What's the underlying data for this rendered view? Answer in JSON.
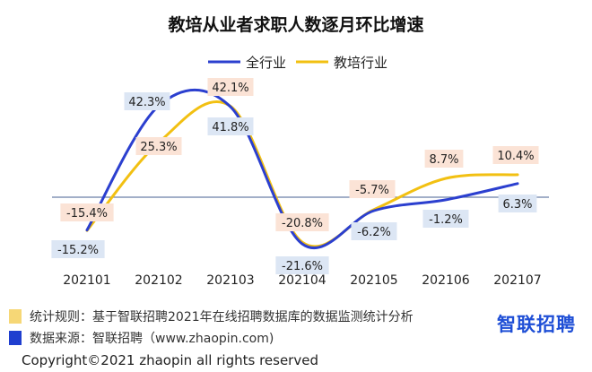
{
  "chart_data": {
    "type": "line",
    "title": "教培从业者求职人数逐月环比增速",
    "categories": [
      "202101",
      "202102",
      "202103",
      "202104",
      "202105",
      "202106",
      "202107"
    ],
    "series": [
      {
        "name": "全行业",
        "color": "#2b3fcf",
        "values": [
          -15.2,
          42.3,
          41.8,
          -21.6,
          -6.2,
          -1.2,
          6.3
        ],
        "labels": [
          "-15.2%",
          "42.3%",
          "41.8%",
          "-21.6%",
          "-6.2%",
          "-1.2%",
          "6.3%"
        ]
      },
      {
        "name": "教培行业",
        "color": "#f2c012",
        "values": [
          -15.4,
          25.3,
          42.1,
          -20.8,
          -5.7,
          8.7,
          10.4
        ],
        "labels": [
          "-15.4%",
          "25.3%",
          "42.1%",
          "-20.8%",
          "-5.7%",
          "8.7%",
          "10.4%"
        ]
      }
    ],
    "legend": "top-center",
    "grid": false
  },
  "footer": {
    "rule_text": "统计规则：基于智联招聘2021年在线招聘数据库的数据监测统计分析",
    "rule_color": "#f6d776",
    "source_text": "数据来源：智联招聘（www.zhaopin.com)",
    "source_color": "#1f3ecf",
    "brand": "智联招聘",
    "copyright": "Copyright©2021 zhaopin all rights reserved"
  }
}
